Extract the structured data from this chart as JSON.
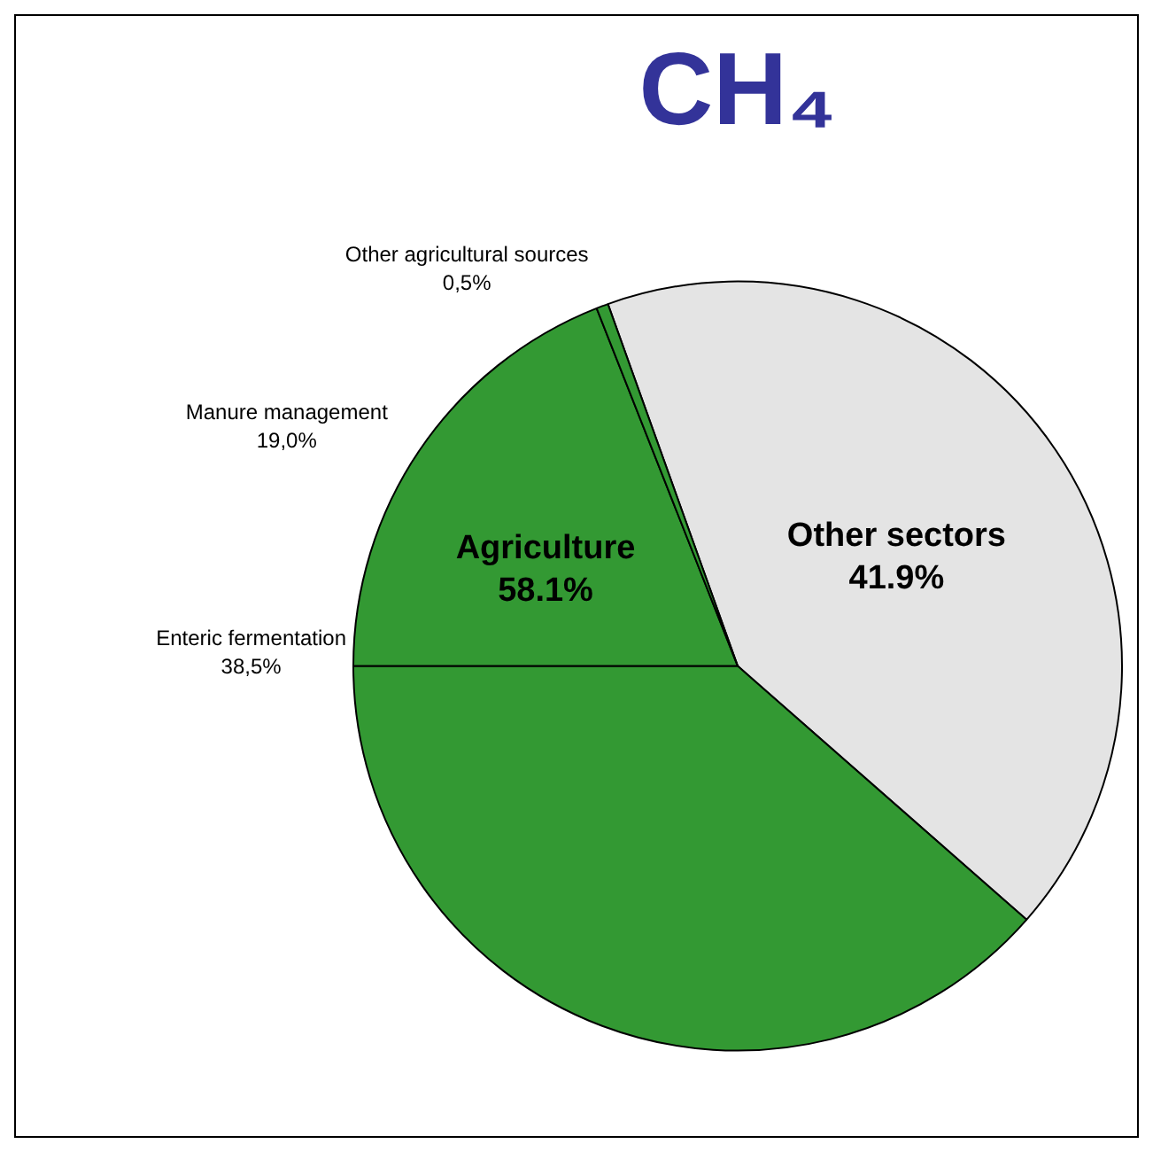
{
  "chart_data": {
    "type": "pie",
    "title": "CH₄",
    "categories": [
      "Other sectors",
      "Enteric fermentation",
      "Manure management",
      "Other agricultural sources"
    ],
    "values": [
      41.9,
      38.5,
      19.0,
      0.5
    ],
    "value_labels": [
      "41.9%",
      "38,5%",
      "19,0%",
      "0,5%"
    ],
    "colors": [
      "#e4e4e4",
      "#339933",
      "#339933",
      "#339933"
    ],
    "annotations": [
      "Agriculture\n58.1%"
    ],
    "legend": false
  }
}
